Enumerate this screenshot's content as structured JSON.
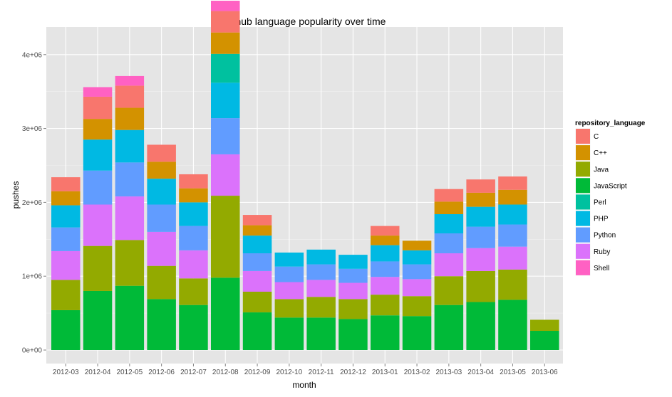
{
  "chart_data": {
    "type": "bar",
    "stacked": true,
    "title": "Github language popularity over time",
    "xlabel": "month",
    "ylabel": "pushes",
    "ylim": [
      0,
      4300000
    ],
    "yticks": [
      0,
      1000000,
      2000000,
      3000000,
      4000000
    ],
    "ytick_labels": [
      "0e+00",
      "1e+06",
      "2e+06",
      "3e+06",
      "4e+06"
    ],
    "grid": true,
    "legend": {
      "title": "repository_language",
      "position": "right"
    },
    "categories": [
      "2012-03",
      "2012-04",
      "2012-05",
      "2012-06",
      "2012-07",
      "2012-08",
      "2012-09",
      "2012-10",
      "2012-11",
      "2012-12",
      "2013-01",
      "2013-02",
      "2013-03",
      "2013-04",
      "2013-05",
      "2013-06"
    ],
    "series": [
      {
        "name": "JavaScript",
        "color": "#00BA38",
        "values": [
          540000,
          800000,
          870000,
          690000,
          610000,
          980000,
          510000,
          440000,
          440000,
          420000,
          470000,
          460000,
          610000,
          650000,
          680000,
          260000
        ]
      },
      {
        "name": "Java",
        "color": "#93AA00",
        "values": [
          410000,
          610000,
          620000,
          450000,
          360000,
          1110000,
          280000,
          250000,
          280000,
          270000,
          280000,
          270000,
          390000,
          420000,
          410000,
          150000
        ]
      },
      {
        "name": "Ruby",
        "color": "#DB72FB",
        "values": [
          390000,
          560000,
          590000,
          460000,
          380000,
          560000,
          280000,
          230000,
          230000,
          220000,
          240000,
          230000,
          310000,
          310000,
          310000,
          0
        ]
      },
      {
        "name": "Python",
        "color": "#619CFF",
        "values": [
          320000,
          460000,
          460000,
          370000,
          330000,
          490000,
          240000,
          210000,
          210000,
          190000,
          210000,
          200000,
          270000,
          290000,
          300000,
          0
        ]
      },
      {
        "name": "PHP",
        "color": "#00B9E3",
        "values": [
          300000,
          420000,
          440000,
          350000,
          320000,
          480000,
          240000,
          190000,
          200000,
          190000,
          220000,
          190000,
          260000,
          270000,
          270000,
          0
        ]
      },
      {
        "name": "Perl",
        "color": "#00C19F",
        "values": [
          0,
          0,
          0,
          0,
          0,
          390000,
          0,
          0,
          0,
          0,
          0,
          0,
          0,
          0,
          0,
          0
        ]
      },
      {
        "name": "C++",
        "color": "#D39200",
        "values": [
          190000,
          280000,
          300000,
          230000,
          190000,
          290000,
          140000,
          0,
          0,
          0,
          130000,
          130000,
          170000,
          190000,
          200000,
          0
        ]
      },
      {
        "name": "C",
        "color": "#F8766D",
        "values": [
          190000,
          300000,
          300000,
          230000,
          190000,
          290000,
          140000,
          0,
          0,
          0,
          130000,
          0,
          170000,
          180000,
          180000,
          0
        ]
      },
      {
        "name": "Shell",
        "color": "#FF61C3",
        "values": [
          0,
          130000,
          130000,
          0,
          0,
          140000,
          0,
          0,
          0,
          0,
          0,
          0,
          0,
          0,
          0,
          0
        ]
      }
    ],
    "legend_order": [
      "C",
      "C++",
      "Java",
      "JavaScript",
      "Perl",
      "PHP",
      "Python",
      "Ruby",
      "Shell"
    ]
  }
}
